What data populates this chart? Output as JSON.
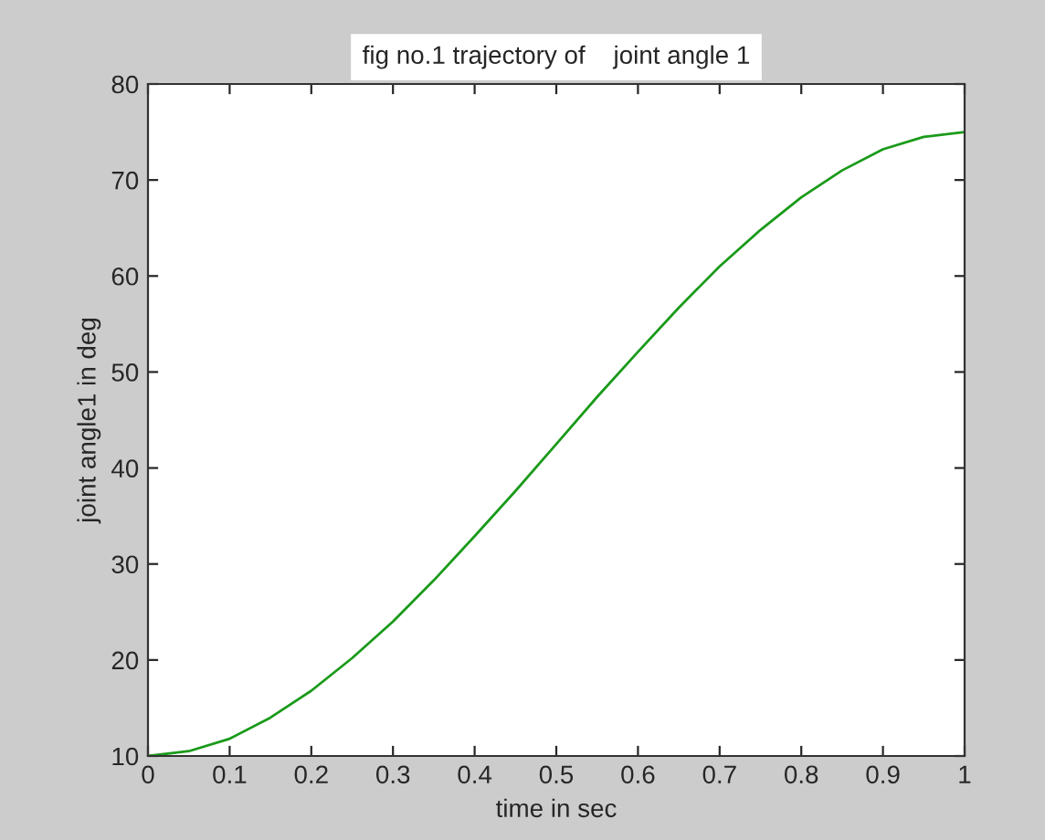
{
  "chart_data": {
    "type": "line",
    "title": "fig no.1 trajectory of    joint angle 1",
    "xlabel": "time in sec",
    "ylabel": "joint angle1 in deg",
    "x": [
      0,
      0.05,
      0.1,
      0.15,
      0.2,
      0.25,
      0.3,
      0.35,
      0.4,
      0.45,
      0.5,
      0.55,
      0.6,
      0.65,
      0.7,
      0.75,
      0.8,
      0.85,
      0.9,
      0.95,
      1
    ],
    "series": [
      {
        "color": "#1a9a1a",
        "values": [
          10,
          10.5,
          11.8,
          14.0,
          16.8,
          20.2,
          24.0,
          28.3,
          32.9,
          37.6,
          42.5,
          47.4,
          52.1,
          56.7,
          61.0,
          64.8,
          68.2,
          71.0,
          73.2,
          74.5,
          75
        ]
      }
    ],
    "xlim": [
      0,
      1
    ],
    "ylim": [
      10,
      80
    ],
    "xticks": [
      0,
      0.1,
      0.2,
      0.3,
      0.4,
      0.5,
      0.6,
      0.7,
      0.8,
      0.9,
      1
    ],
    "yticks": [
      10,
      20,
      30,
      40,
      50,
      60,
      70,
      80
    ],
    "grid": false,
    "legend": false
  }
}
